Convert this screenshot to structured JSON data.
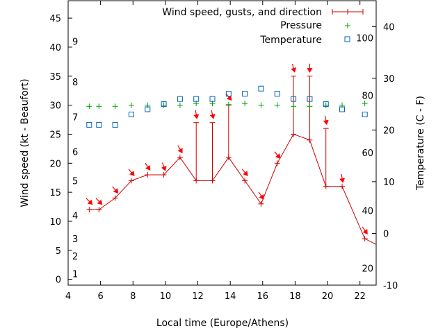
{
  "chart_data": {
    "type": "line",
    "xlabel": "Local time (Europe/Athens)",
    "ylabel": "Wind speed (kt - Beaufort)",
    "y2label": "Temperature (C - F)",
    "xlim": [
      4,
      23
    ],
    "ylim": [
      -1,
      48
    ],
    "y2lim": [
      -10,
      45
    ],
    "x_ticks": [
      4,
      6,
      8,
      10,
      12,
      14,
      16,
      18,
      20,
      22
    ],
    "y_ticks": [
      0,
      5,
      10,
      15,
      20,
      25,
      30,
      35,
      40,
      45
    ],
    "y2_ticks": [
      -10,
      0,
      10,
      20,
      30,
      40
    ],
    "beaufort_labels": [
      {
        "label": "1",
        "kt": 1
      },
      {
        "label": "2",
        "kt": 4
      },
      {
        "label": "3",
        "kt": 7
      },
      {
        "label": "4",
        "kt": 11
      },
      {
        "label": "5",
        "kt": 17
      },
      {
        "label": "6",
        "kt": 22
      },
      {
        "label": "7",
        "kt": 28
      },
      {
        "label": "8",
        "kt": 34
      },
      {
        "label": "9",
        "kt": 41
      }
    ],
    "fahrenheit_labels": [
      {
        "label": "20",
        "c": -6.7
      },
      {
        "label": "40",
        "c": 4.4
      },
      {
        "label": "60",
        "c": 15.6
      },
      {
        "label": "80",
        "c": 26.7
      },
      {
        "label": "100",
        "c": 37.8
      }
    ],
    "legend": {
      "placement": "top-right",
      "wind": "Wind speed, gusts, and direction",
      "pressure": "Pressure",
      "temperature": "Temperature"
    },
    "colors": {
      "wind": "#cc0000",
      "pressure": "#00a000",
      "temperature": "#0060c0",
      "arrow": "#ff0000"
    },
    "wind": [
      {
        "x": 5.3,
        "speed": 12,
        "gust": null,
        "dir": 315
      },
      {
        "x": 5.9,
        "speed": 12,
        "gust": null,
        "dir": 315
      },
      {
        "x": 6.9,
        "speed": 14,
        "gust": null,
        "dir": 320
      },
      {
        "x": 7.9,
        "speed": 17,
        "gust": null,
        "dir": 320
      },
      {
        "x": 8.9,
        "speed": 18,
        "gust": null,
        "dir": 325
      },
      {
        "x": 9.9,
        "speed": 18,
        "gust": null,
        "dir": 340
      },
      {
        "x": 10.9,
        "speed": 21,
        "gust": null,
        "dir": 330
      },
      {
        "x": 11.9,
        "speed": 17,
        "gust": 27,
        "dir": 350
      },
      {
        "x": 12.9,
        "speed": 17,
        "gust": 27,
        "dir": 345
      },
      {
        "x": 13.9,
        "speed": 21,
        "gust": 30,
        "dir": 320
      },
      {
        "x": 14.9,
        "speed": 17,
        "gust": null,
        "dir": 320
      },
      {
        "x": 15.9,
        "speed": 13,
        "gust": null,
        "dir": 325
      },
      {
        "x": 16.9,
        "speed": 20,
        "gust": null,
        "dir": 320
      },
      {
        "x": 17.9,
        "speed": 25,
        "gust": 35,
        "dir": 345
      },
      {
        "x": 18.9,
        "speed": 24,
        "gust": 35,
        "dir": 360
      },
      {
        "x": 19.9,
        "speed": 16,
        "gust": 26,
        "dir": 350
      },
      {
        "x": 20.9,
        "speed": 16,
        "gust": null,
        "dir": 350
      },
      {
        "x": 22.3,
        "speed": 7,
        "gust": null,
        "dir": 325
      },
      {
        "x": 23.0,
        "speed": 6,
        "gust": null,
        "dir": null
      }
    ],
    "pressure_points": [
      {
        "x": 5.3,
        "y": 29.8
      },
      {
        "x": 5.9,
        "y": 29.8
      },
      {
        "x": 6.9,
        "y": 29.8
      },
      {
        "x": 7.9,
        "y": 30.0
      },
      {
        "x": 8.9,
        "y": 30.0
      },
      {
        "x": 9.9,
        "y": 30.0
      },
      {
        "x": 10.9,
        "y": 30.0
      },
      {
        "x": 11.9,
        "y": 30.3
      },
      {
        "x": 12.9,
        "y": 30.3
      },
      {
        "x": 13.9,
        "y": 30.1
      },
      {
        "x": 14.9,
        "y": 30.3
      },
      {
        "x": 15.9,
        "y": 30.0
      },
      {
        "x": 16.9,
        "y": 30.0
      },
      {
        "x": 17.9,
        "y": 29.8
      },
      {
        "x": 18.9,
        "y": 29.8
      },
      {
        "x": 19.9,
        "y": 30.0
      },
      {
        "x": 20.9,
        "y": 30.0
      },
      {
        "x": 22.3,
        "y": 30.3
      }
    ],
    "temperature_points": [
      {
        "x": 5.3,
        "c": 21
      },
      {
        "x": 5.9,
        "c": 21
      },
      {
        "x": 6.9,
        "c": 21
      },
      {
        "x": 7.9,
        "c": 23
      },
      {
        "x": 8.9,
        "c": 24
      },
      {
        "x": 9.9,
        "c": 25
      },
      {
        "x": 10.9,
        "c": 26
      },
      {
        "x": 11.9,
        "c": 26
      },
      {
        "x": 12.9,
        "c": 26
      },
      {
        "x": 13.9,
        "c": 27
      },
      {
        "x": 14.9,
        "c": 27
      },
      {
        "x": 15.9,
        "c": 28
      },
      {
        "x": 16.9,
        "c": 27
      },
      {
        "x": 17.9,
        "c": 26
      },
      {
        "x": 18.9,
        "c": 26
      },
      {
        "x": 19.9,
        "c": 25
      },
      {
        "x": 20.9,
        "c": 24
      },
      {
        "x": 22.3,
        "c": 23
      }
    ]
  }
}
